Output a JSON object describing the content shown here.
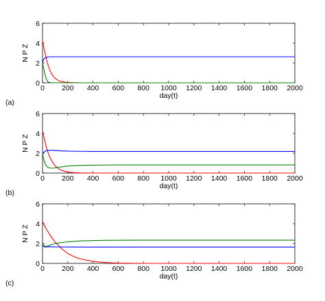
{
  "chart_data": [
    {
      "type": "line",
      "panel_label": "(a)",
      "xlabel": "day(t)",
      "ylabel": "N P Z",
      "xlim": [
        0,
        2000
      ],
      "ylim": [
        0,
        6
      ],
      "xticks": [
        0,
        200,
        400,
        600,
        800,
        1000,
        1200,
        1400,
        1600,
        1800,
        2000
      ],
      "yticks": [
        0,
        2,
        4,
        6
      ],
      "series": [
        {
          "color": "#ff0000",
          "x": [
            0,
            10,
            20,
            30,
            40,
            50,
            60,
            70,
            80,
            100,
            120,
            140,
            160,
            180,
            200,
            250,
            300,
            400,
            2000
          ],
          "y": [
            4.2,
            3.6,
            3.0,
            2.45,
            1.95,
            1.55,
            1.2,
            0.95,
            0.75,
            0.45,
            0.27,
            0.16,
            0.1,
            0.06,
            0.03,
            0.01,
            0.0,
            0.0,
            0.0
          ]
        },
        {
          "color": "#0000ff",
          "x": [
            0,
            5,
            10,
            20,
            30,
            40,
            60,
            80,
            100,
            2000
          ],
          "y": [
            2.0,
            2.25,
            2.4,
            2.5,
            2.55,
            2.6,
            2.62,
            2.62,
            2.62,
            2.62
          ]
        },
        {
          "color": "#008000",
          "x": [
            0,
            5,
            10,
            20,
            30,
            40,
            50,
            60,
            80,
            100,
            2000
          ],
          "y": [
            2.0,
            1.7,
            1.4,
            0.8,
            0.4,
            0.15,
            0.05,
            0.02,
            0.0,
            0.0,
            0.0
          ]
        }
      ]
    },
    {
      "type": "line",
      "panel_label": "(b)",
      "xlabel": "day(t)",
      "ylabel": "N P Z",
      "xlim": [
        0,
        2000
      ],
      "ylim": [
        0,
        6
      ],
      "xticks": [
        0,
        200,
        400,
        600,
        800,
        1000,
        1200,
        1400,
        1600,
        1800,
        2000
      ],
      "yticks": [
        0,
        2,
        4,
        6
      ],
      "series": [
        {
          "color": "#ff0000",
          "x": [
            0,
            10,
            20,
            30,
            40,
            60,
            80,
            100,
            120,
            150,
            200,
            250,
            300,
            400,
            2000
          ],
          "y": [
            4.2,
            3.7,
            3.15,
            2.65,
            2.2,
            1.55,
            1.1,
            0.75,
            0.5,
            0.28,
            0.1,
            0.04,
            0.01,
            0.0,
            0.0
          ]
        },
        {
          "color": "#0000ff",
          "x": [
            0,
            10,
            20,
            30,
            40,
            60,
            80,
            100,
            150,
            200,
            300,
            400,
            600,
            2000
          ],
          "y": [
            1.9,
            2.1,
            2.2,
            2.25,
            2.28,
            2.3,
            2.3,
            2.28,
            2.24,
            2.21,
            2.19,
            2.18,
            2.18,
            2.18
          ]
        },
        {
          "color": "#008000",
          "x": [
            0,
            10,
            20,
            30,
            40,
            60,
            80,
            100,
            150,
            200,
            300,
            400,
            500,
            600,
            2000
          ],
          "y": [
            2.0,
            1.35,
            0.95,
            0.72,
            0.6,
            0.5,
            0.5,
            0.53,
            0.62,
            0.7,
            0.77,
            0.8,
            0.81,
            0.82,
            0.82
          ]
        }
      ]
    },
    {
      "type": "line",
      "panel_label": "(c)",
      "xlabel": "day(t)",
      "ylabel": "N P Z",
      "xlim": [
        0,
        2000
      ],
      "ylim": [
        0,
        6
      ],
      "xticks": [
        0,
        200,
        400,
        600,
        800,
        1000,
        1200,
        1400,
        1600,
        1800,
        2000
      ],
      "yticks": [
        0,
        2,
        4,
        6
      ],
      "series": [
        {
          "color": "#ff0000",
          "x": [
            0,
            20,
            40,
            60,
            80,
            100,
            150,
            200,
            250,
            300,
            400,
            500,
            600,
            700,
            800,
            2000
          ],
          "y": [
            4.2,
            3.7,
            3.25,
            2.85,
            2.5,
            2.15,
            1.5,
            1.0,
            0.68,
            0.45,
            0.2,
            0.08,
            0.03,
            0.01,
            0.0,
            0.0
          ]
        },
        {
          "color": "#0000ff",
          "x": [
            0,
            10,
            20,
            30,
            50,
            100,
            200,
            400,
            2000
          ],
          "y": [
            1.8,
            1.7,
            1.65,
            1.66,
            1.68,
            1.66,
            1.65,
            1.64,
            1.64
          ]
        },
        {
          "color": "#008000",
          "x": [
            0,
            10,
            20,
            40,
            60,
            100,
            150,
            200,
            300,
            400,
            500,
            600,
            800,
            2000
          ],
          "y": [
            2.0,
            1.8,
            1.7,
            1.75,
            1.85,
            2.0,
            2.1,
            2.18,
            2.26,
            2.3,
            2.32,
            2.33,
            2.34,
            2.34
          ]
        }
      ]
    }
  ]
}
